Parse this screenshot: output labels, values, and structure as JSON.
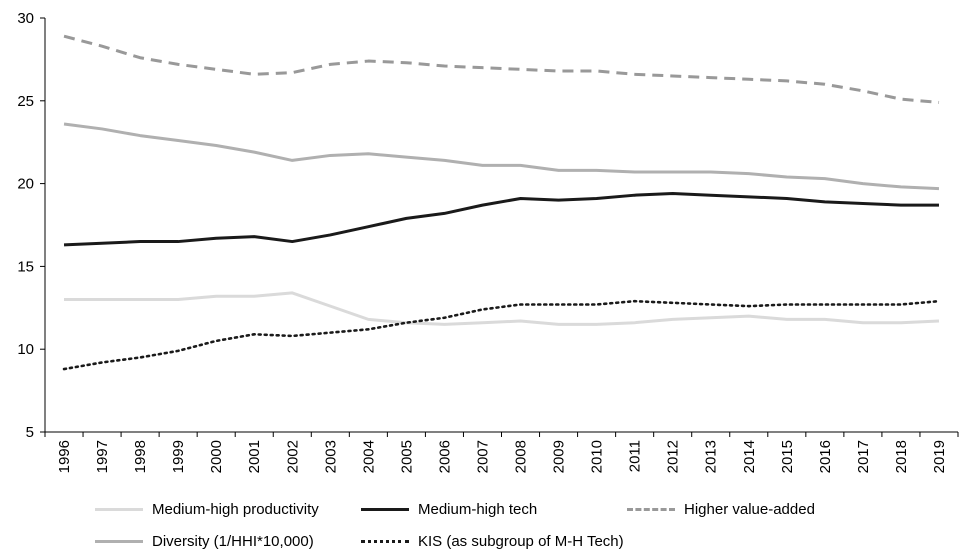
{
  "chart_data": {
    "type": "line",
    "x": [
      "1996",
      "1997",
      "1998",
      "1999",
      "2000",
      "2001",
      "2002",
      "2003",
      "2004",
      "2005",
      "2006",
      "2007",
      "2008",
      "2009",
      "2010",
      "2011",
      "2012",
      "2013",
      "2014",
      "2015",
      "2016",
      "2017",
      "2018",
      "2019"
    ],
    "ylim": [
      5,
      30
    ],
    "yticks": [
      5,
      10,
      15,
      20,
      25,
      30
    ],
    "grid": false,
    "legend_position": "bottom",
    "series": [
      {
        "name": "Medium-high productivity",
        "color": "#dadada",
        "style": "solid",
        "values": [
          13.0,
          13.0,
          13.0,
          13.0,
          13.2,
          13.2,
          13.4,
          12.6,
          11.8,
          11.6,
          11.5,
          11.6,
          11.7,
          11.5,
          11.5,
          11.6,
          11.8,
          11.9,
          12.0,
          11.8,
          11.8,
          11.6,
          11.6,
          11.7
        ]
      },
      {
        "name": "Medium-high tech",
        "color": "#1a1a1a",
        "style": "solid",
        "values": [
          16.3,
          16.4,
          16.5,
          16.5,
          16.7,
          16.8,
          16.5,
          16.9,
          17.4,
          17.9,
          18.2,
          18.7,
          19.1,
          19.0,
          19.1,
          19.3,
          19.4,
          19.3,
          19.2,
          19.1,
          18.9,
          18.8,
          18.7,
          18.7
        ]
      },
      {
        "name": "Higher value-added",
        "color": "#999999",
        "style": "dashed",
        "values": [
          28.9,
          28.3,
          27.6,
          27.2,
          26.9,
          26.6,
          26.7,
          27.2,
          27.4,
          27.3,
          27.1,
          27.0,
          26.9,
          26.8,
          26.8,
          26.6,
          26.5,
          26.4,
          26.3,
          26.2,
          26.0,
          25.6,
          25.1,
          24.9
        ]
      },
      {
        "name": "Diversity (1/HHI*10,000)",
        "color": "#b0b0b0",
        "style": "solid",
        "values": [
          23.6,
          23.3,
          22.9,
          22.6,
          22.3,
          21.9,
          21.4,
          21.7,
          21.8,
          21.6,
          21.4,
          21.1,
          21.1,
          20.8,
          20.8,
          20.7,
          20.7,
          20.7,
          20.6,
          20.4,
          20.3,
          20.0,
          19.8,
          19.7
        ]
      },
      {
        "name": "KIS (as subgroup of M-H Tech)",
        "color": "#1a1a1a",
        "style": "dotted",
        "values": [
          8.8,
          9.2,
          9.5,
          9.9,
          10.5,
          10.9,
          10.8,
          11.0,
          11.2,
          11.6,
          11.9,
          12.4,
          12.7,
          12.7,
          12.7,
          12.9,
          12.8,
          12.7,
          12.6,
          12.7,
          12.7,
          12.7,
          12.7,
          12.9
        ]
      }
    ]
  }
}
